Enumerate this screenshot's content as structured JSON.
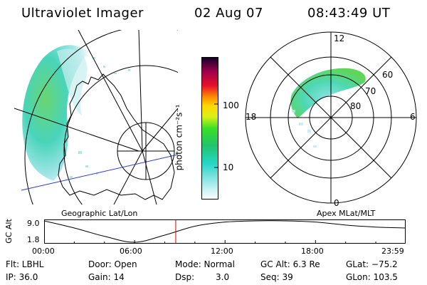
{
  "header": {
    "instrument": "Ultraviolet Imager",
    "date": "02 Aug 07",
    "time": "08:43:49 UT"
  },
  "colorbar": {
    "unit_label": "photon cm⁻²s⁻¹",
    "ticks": [
      "100",
      "10"
    ]
  },
  "polar_plot": {
    "mlt_labels": [
      "12",
      "18",
      "6",
      "0"
    ],
    "mlat_labels": [
      "60",
      "70",
      "80"
    ]
  },
  "projections": {
    "left": "Geographic Lat/Lon",
    "right": "Apex MLat/MLT"
  },
  "altitude_plot": {
    "ylabel": "GC Alt",
    "yticks": [
      "9.0",
      "1.8"
    ],
    "xticks": [
      "00:00",
      "06:00",
      "12:00",
      "18:00",
      "23:59"
    ],
    "marker_time": "08:43:49",
    "marker_color": "#cc0000"
  },
  "chart_data": {
    "type": "line",
    "x": [
      0,
      2,
      4,
      6,
      8,
      10,
      12,
      14,
      16,
      18,
      20,
      22,
      23.98
    ],
    "y": [
      9.0,
      6.6,
      3.8,
      1.8,
      4.2,
      7.2,
      8.6,
      9.0,
      9.0,
      8.6,
      7.6,
      6.9,
      6.6
    ],
    "xlim": [
      0,
      23.98
    ],
    "ylim": [
      1.8,
      9.0
    ],
    "ylabel": "GC Alt"
  },
  "footer": {
    "row1": {
      "flt": "Flt: LBHL",
      "door": "Door: Open",
      "mode": "Mode: Normal",
      "gcalt": "GC Alt: 6.3 Re",
      "glat": "GLat: −75.2"
    },
    "row2": {
      "ip": "IP: 36.0",
      "gain": "Gain: 14",
      "dsp_label": "Dsp:",
      "dsp_value": "3.0",
      "seq": "Seq: 39",
      "glon": "GLon: 103.5"
    }
  }
}
